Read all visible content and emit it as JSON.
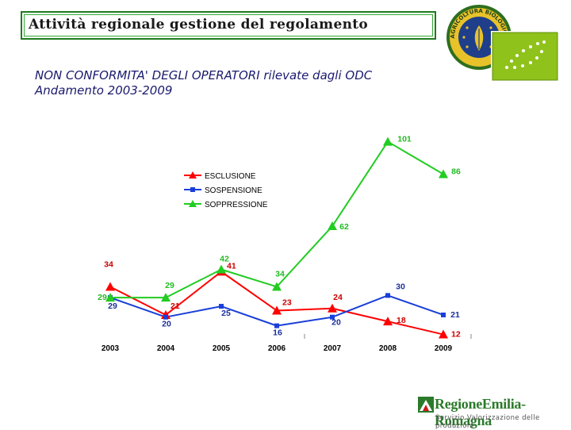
{
  "header": {
    "title": "Attività regionale gestione del regolamento",
    "subtitle_line1": "NON CONFORMITA' DEGLI OPERATORI rilevate dagli ODC",
    "subtitle_line2": "Andamento 2003-2009"
  },
  "logos": {
    "seal_text": "AGRICOLTURA BIOLOGICA",
    "brand_name": "RegioneEmilia-Romagna",
    "brand_service": "Servizio Valorizzazione delle produzioni"
  },
  "colors": {
    "esclusione": "#ff0000",
    "sospensione": "#1a3fd8",
    "soppressione": "#22cc22",
    "title_border": "#1f7a1f",
    "eu_green": "#8fc21a"
  },
  "chart_data": {
    "type": "line",
    "categories": [
      "2003",
      "2004",
      "2005",
      "2006",
      "2007",
      "2008",
      "2009"
    ],
    "series": [
      {
        "name": "ESCLUSIONE",
        "values": [
          34,
          21,
          41,
          23,
          24,
          18,
          12
        ],
        "marker": "triangle"
      },
      {
        "name": "SOSPENSIONE",
        "values": [
          29,
          20,
          25,
          16,
          20,
          30,
          21
        ],
        "marker": "square"
      },
      {
        "name": "SOPPRESSIONE",
        "values": [
          29,
          29,
          42,
          34,
          62,
          101,
          86
        ],
        "marker": "triangle"
      }
    ],
    "legend_position": "top-left",
    "grid": false
  }
}
